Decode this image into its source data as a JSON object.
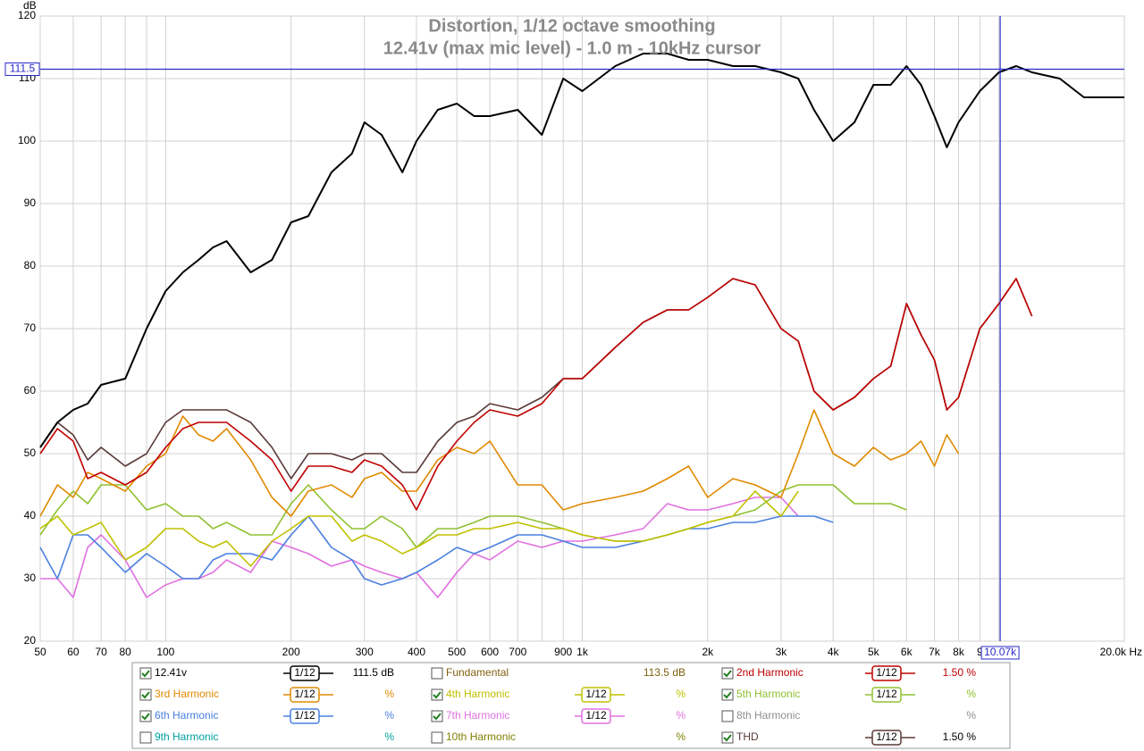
{
  "chart_data": {
    "type": "line",
    "title": "Distortion, 1/12 octave smoothing",
    "subtitle": "12.41v (max mic level) - 1.0 m - 10kHz cursor",
    "ylabel": "dB",
    "xlim": [
      50,
      20000
    ],
    "log_x": true,
    "ylim": [
      20,
      120
    ],
    "yticks": [
      20,
      30,
      40,
      50,
      60,
      70,
      80,
      90,
      100,
      110,
      120
    ],
    "xticks": [
      50,
      60,
      70,
      80,
      100,
      200,
      300,
      400,
      500,
      600,
      700,
      900,
      {
        "value": 1000,
        "label": "1k"
      },
      {
        "value": 2000,
        "label": "2k"
      },
      {
        "value": 3000,
        "label": "3k"
      },
      {
        "value": 4000,
        "label": "4k"
      },
      {
        "value": 5000,
        "label": "5k"
      },
      {
        "value": 6000,
        "label": "6k"
      },
      {
        "value": 7000,
        "label": "7k"
      },
      {
        "value": 8000,
        "label": "8k"
      },
      {
        "value": 9000,
        "label": "9"
      },
      {
        "value": 20000,
        "label": "20.0k Hz"
      }
    ],
    "xminor_ticks": [
      90,
      800,
      10000
    ],
    "grid": true,
    "cursor": {
      "x": {
        "value": 10070,
        "label": "10.07k"
      },
      "y": 111.5,
      "color": "#2a2ac8"
    },
    "x": [
      50,
      55,
      60,
      65,
      70,
      80,
      90,
      100,
      110,
      120,
      130,
      140,
      160,
      180,
      200,
      220,
      250,
      280,
      300,
      330,
      370,
      400,
      450,
      500,
      550,
      600,
      700,
      800,
      900,
      1000,
      1200,
      1400,
      1600,
      1800,
      2000,
      2300,
      2600,
      3000,
      3300,
      3600,
      4000,
      4500,
      5000,
      5500,
      6000,
      6500,
      7000,
      7500,
      8000,
      9000,
      10000,
      11000,
      12000,
      14000,
      16000,
      18000,
      20000
    ],
    "series": [
      {
        "name": "12.41v",
        "color": "#000000",
        "checked": true,
        "smoothing": "1/12",
        "readout": "111.5 dB",
        "values": [
          51,
          55,
          57,
          58,
          61,
          62,
          70,
          76,
          79,
          81,
          83,
          84,
          79,
          81,
          87,
          88,
          95,
          98,
          103,
          101,
          95,
          100,
          105,
          106,
          104,
          104,
          105,
          101,
          110,
          108,
          112,
          114,
          114,
          113,
          113,
          112,
          112,
          111,
          110,
          105,
          100,
          103,
          109,
          109,
          112,
          109,
          104,
          99,
          103,
          108,
          111,
          112,
          111,
          110,
          107,
          107,
          107
        ]
      },
      {
        "name": "Fundamental",
        "color": "#806010",
        "checked": false,
        "readout": "113.5 dB"
      },
      {
        "name": "2nd Harmonic",
        "color": "#c00000",
        "checked": true,
        "smoothing": "1/12",
        "readout": "1.50 %",
        "values": [
          50,
          54,
          52,
          46,
          47,
          45,
          47,
          51,
          54,
          55,
          55,
          55,
          52,
          49,
          44,
          48,
          48,
          47,
          49,
          48,
          45,
          41,
          48,
          52,
          55,
          57,
          56,
          58,
          62,
          62,
          67,
          71,
          73,
          73,
          75,
          78,
          77,
          70,
          68,
          60,
          57,
          59,
          62,
          64,
          74,
          69,
          65,
          57,
          59,
          70,
          74,
          78,
          72,
          null,
          null,
          null,
          null
        ]
      },
      {
        "name": "3rd Harmonic",
        "color": "#e08a00",
        "checked": true,
        "smoothing": "1/12",
        "readout": "%",
        "values": [
          40,
          45,
          43,
          47,
          46,
          44,
          48,
          50,
          56,
          53,
          52,
          54,
          49,
          43,
          40,
          44,
          45,
          43,
          46,
          47,
          44,
          44,
          49,
          51,
          50,
          52,
          45,
          45,
          41,
          42,
          43,
          44,
          46,
          48,
          43,
          46,
          45,
          43,
          50,
          57,
          50,
          48,
          51,
          49,
          50,
          52,
          48,
          53,
          50,
          null,
          null,
          null,
          null,
          null,
          null,
          null,
          null
        ]
      },
      {
        "name": "4th Harmonic",
        "color": "#c0c000",
        "checked": true,
        "smoothing": "1/12",
        "readout": "%",
        "values": [
          38,
          40,
          37,
          38,
          39,
          33,
          35,
          38,
          38,
          36,
          35,
          36,
          32,
          36,
          38,
          40,
          40,
          36,
          37,
          36,
          34,
          35,
          37,
          37,
          38,
          38,
          39,
          38,
          38,
          37,
          36,
          36,
          37,
          38,
          39,
          40,
          44,
          40,
          44,
          null,
          null,
          null,
          null,
          null,
          null,
          null,
          null,
          null,
          null,
          null,
          null,
          null,
          null,
          null,
          null,
          null,
          null
        ]
      },
      {
        "name": "5th Harmonic",
        "color": "#90c030",
        "checked": true,
        "smoothing": "1/12",
        "readout": "%",
        "values": [
          37,
          41,
          44,
          42,
          45,
          45,
          41,
          42,
          40,
          40,
          38,
          39,
          37,
          37,
          42,
          45,
          41,
          38,
          38,
          40,
          38,
          35,
          38,
          38,
          39,
          40,
          40,
          39,
          38,
          37,
          36,
          36,
          37,
          38,
          39,
          40,
          41,
          44,
          45,
          45,
          45,
          42,
          42,
          42,
          41,
          null,
          null,
          null,
          null,
          null,
          null,
          null,
          null,
          null,
          null,
          null,
          null
        ]
      },
      {
        "name": "6th Harmonic",
        "color": "#4a80e0",
        "checked": true,
        "smoothing": "1/12",
        "readout": "%",
        "values": [
          35,
          30,
          37,
          37,
          35,
          31,
          34,
          32,
          30,
          30,
          33,
          34,
          34,
          33,
          37,
          40,
          35,
          33,
          30,
          29,
          30,
          31,
          33,
          35,
          34,
          35,
          37,
          37,
          36,
          35,
          35,
          36,
          37,
          38,
          38,
          39,
          39,
          40,
          40,
          40,
          39,
          null,
          null,
          null,
          null,
          null,
          null,
          null,
          null,
          null,
          null,
          null,
          null,
          null,
          null,
          null,
          null
        ]
      },
      {
        "name": "7th Harmonic",
        "color": "#e070e0",
        "checked": true,
        "smoothing": "1/12",
        "readout": "%",
        "values": [
          30,
          30,
          27,
          35,
          37,
          33,
          27,
          29,
          30,
          30,
          31,
          33,
          31,
          36,
          35,
          34,
          32,
          33,
          32,
          31,
          30,
          31,
          27,
          31,
          34,
          33,
          36,
          35,
          36,
          36,
          37,
          38,
          42,
          41,
          41,
          42,
          43,
          43,
          40,
          null,
          null,
          null,
          null,
          null,
          null,
          null,
          null,
          null,
          null,
          null,
          null,
          null,
          null,
          null,
          null,
          null,
          null
        ]
      },
      {
        "name": "8th Harmonic",
        "color": "#909090",
        "checked": false,
        "readout": "%"
      },
      {
        "name": "9th Harmonic",
        "color": "#00a0a0",
        "checked": false,
        "readout": "%"
      },
      {
        "name": "10th Harmonic",
        "color": "#808000",
        "checked": false,
        "readout": "%"
      },
      {
        "name": "THD",
        "color": "#5a3838",
        "checked": true,
        "smoothing": "1/12",
        "readout": "1.50 %",
        "values": [
          51,
          55,
          53,
          49,
          51,
          48,
          50,
          55,
          57,
          57,
          57,
          57,
          55,
          51,
          46,
          50,
          50,
          49,
          50,
          50,
          47,
          47,
          52,
          55,
          56,
          58,
          57,
          59,
          62,
          62,
          67,
          71,
          73,
          73,
          75,
          78,
          77,
          70,
          68,
          60,
          57,
          59,
          62,
          64,
          74,
          69,
          65,
          57,
          59,
          70,
          74,
          78,
          72,
          null,
          null,
          null,
          null
        ]
      }
    ]
  }
}
